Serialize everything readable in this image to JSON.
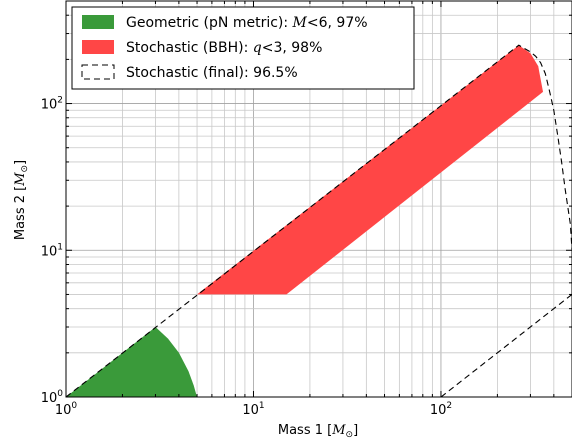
{
  "chart_data": {
    "type": "area",
    "xscale": "log",
    "yscale": "log",
    "xlim": [
      1,
      500
    ],
    "ylim": [
      1,
      500
    ],
    "grid": true,
    "legend_position": "top-left",
    "xlabel": {
      "text": "Mass 1 [",
      "math": "M",
      "sub": "⊙",
      "close": "]"
    },
    "ylabel": {
      "text": "Mass 2 [",
      "math": "M",
      "sub": "⊙",
      "close": "]"
    },
    "x_ticks": [
      {
        "value": 1,
        "base": "10",
        "exp": "0"
      },
      {
        "value": 10,
        "base": "10",
        "exp": "1"
      },
      {
        "value": 100,
        "base": "10",
        "exp": "2"
      }
    ],
    "y_ticks": [
      {
        "value": 1,
        "base": "10",
        "exp": "0"
      },
      {
        "value": 10,
        "base": "10",
        "exp": "1"
      },
      {
        "value": 100,
        "base": "10",
        "exp": "2"
      }
    ],
    "series": [
      {
        "name": "Geometric (pN metric): M<6, 97%",
        "legend": {
          "pre": "Geometric (pN metric): ",
          "math": "M",
          "op": "<6",
          "post": ", 97%"
        },
        "kind": "filled",
        "color": "#3a9a3a",
        "points": [
          [
            1,
            1
          ],
          [
            3,
            3
          ],
          [
            3.5,
            2.5
          ],
          [
            4,
            2
          ],
          [
            4.5,
            1.5
          ],
          [
            4.8,
            1.2
          ],
          [
            5,
            1
          ]
        ]
      },
      {
        "name": "Stochastic (BBH): q<3, 98%",
        "legend": {
          "pre": "Stochastic (BBH): ",
          "math": "q",
          "op": "<3",
          "post": ", 98%"
        },
        "kind": "filled",
        "color": "#ff4646",
        "points": [
          [
            5,
            5
          ],
          [
            15,
            5
          ],
          [
            350,
            120
          ],
          [
            330,
            180
          ],
          [
            300,
            220
          ],
          [
            260,
            250
          ]
        ]
      },
      {
        "name": "Stochastic (final): 96.5%",
        "legend": {
          "pre": "Stochastic (final): 96.5%",
          "math": "",
          "op": "",
          "post": ""
        },
        "kind": "dashed-outline",
        "color": "#000000",
        "points": [
          [
            1,
            1
          ],
          [
            260,
            250
          ],
          [
            300,
            225
          ],
          [
            320,
            210
          ],
          [
            340,
            190
          ],
          [
            360,
            160
          ],
          [
            380,
            120
          ],
          [
            400,
            90
          ],
          [
            420,
            60
          ],
          [
            440,
            40
          ],
          [
            460,
            26
          ],
          [
            490,
            15
          ],
          [
            500,
            10
          ]
        ]
      },
      {
        "name": "",
        "kind": "dashed",
        "color": "#000000",
        "points": [
          [
            100,
            1
          ],
          [
            500,
            5
          ]
        ]
      }
    ]
  }
}
